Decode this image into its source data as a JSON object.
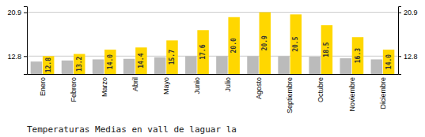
{
  "chart_data": {
    "type": "bar",
    "title": "Temperaturas Medias en vall de laguar la",
    "categories": [
      "Enero",
      "Febrero",
      "Marzo",
      "Abril",
      "Mayo",
      "Junio",
      "Julio",
      "Agosto",
      "Septiembre",
      "Octubre",
      "Noviembre",
      "Diciembre"
    ],
    "series": [
      {
        "color": "#BBBBBB",
        "values": [
          11.8,
          12.0,
          12.2,
          12.3,
          12.6,
          12.8,
          12.8,
          12.8,
          12.8,
          12.7,
          12.4,
          12.2
        ]
      },
      {
        "color": "#FFD700",
        "values": [
          12.8,
          13.2,
          14.0,
          14.4,
          15.7,
          17.6,
          20.0,
          20.9,
          20.5,
          18.5,
          16.3,
          14.0
        ],
        "value_labels": [
          "12.8",
          "13.2",
          "14.0",
          "14.4",
          "15.7",
          "17.6",
          "20.0",
          "20.9",
          "20.5",
          "18.5",
          "16.3",
          "14.0"
        ],
        "data_labels": true
      }
    ],
    "ylim": [
      9.5,
      22.0
    ],
    "yticks": [
      12.8,
      20.9
    ],
    "y2lim": [
      9.5,
      22.0
    ],
    "y2ticks": [
      12.8,
      20.9
    ],
    "grid": true
  }
}
